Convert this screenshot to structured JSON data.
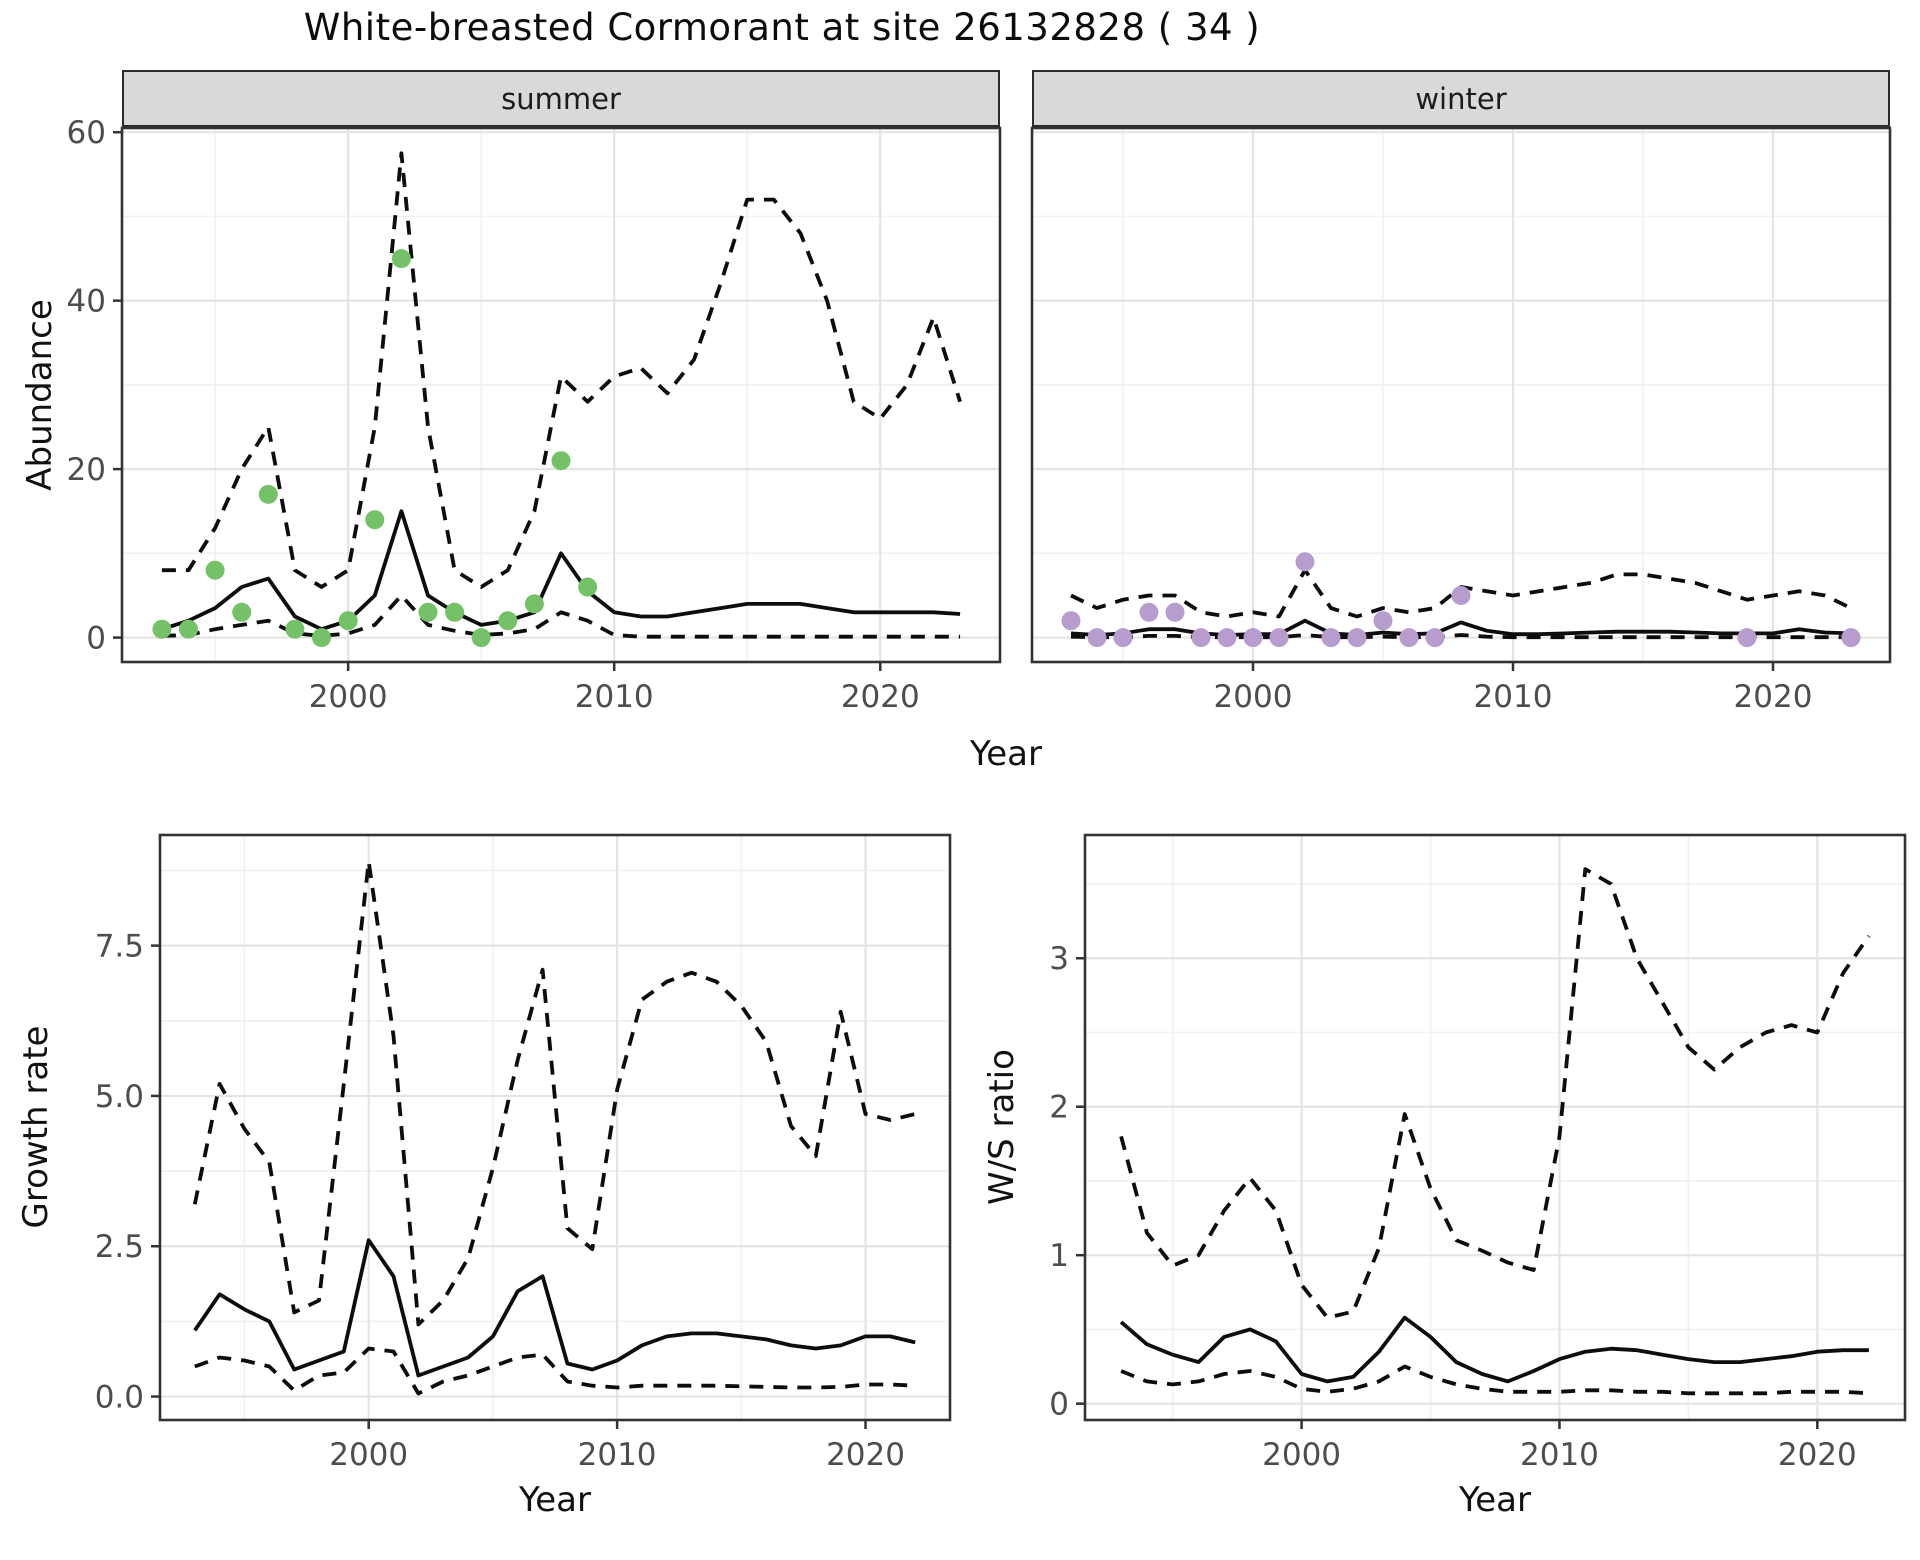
{
  "title": "White-breasted Cormorant at site 26132828 ( 34 )",
  "colors": {
    "summer_points": "#74c168",
    "winter_points": "#b79cce",
    "line": "#0d0d0d",
    "strip_bg": "#d9d9d9",
    "grid_major": "#e4e4e4",
    "grid_minor": "#f1f1f1",
    "tick_text": "#4d4d4d",
    "panel_border": "#333333"
  },
  "chart_data": [
    {
      "id": "abundance-summer",
      "type": "line",
      "facet_label": "summer",
      "ylabel": "Abundance",
      "xlabel": "Year",
      "xlim": [
        1991.5,
        2024.5
      ],
      "ylim": [
        -2.9,
        60.5
      ],
      "xticks": [
        2000,
        2010,
        2020
      ],
      "xtick_labels": [
        "2000",
        "2010",
        "2020"
      ],
      "xminor": [
        1995,
        2005,
        2015
      ],
      "yticks": [
        0,
        20,
        40,
        60
      ],
      "ytick_labels": [
        "0",
        "20",
        "40",
        "60"
      ],
      "yminor": [
        10,
        30,
        50
      ],
      "grid": true,
      "legend": "none",
      "x": [
        1993,
        1994,
        1995,
        1996,
        1997,
        1998,
        1999,
        2000,
        2001,
        2002,
        2003,
        2004,
        2005,
        2006,
        2007,
        2008,
        2009,
        2010,
        2011,
        2012,
        2013,
        2014,
        2015,
        2016,
        2017,
        2018,
        2019,
        2020,
        2021,
        2022,
        2023
      ],
      "series": [
        {
          "name": "fit",
          "style": "solid",
          "values": [
            1,
            2,
            3.5,
            6,
            7,
            2.5,
            1,
            2,
            5,
            15,
            5,
            3,
            1.5,
            2,
            3,
            10,
            5.5,
            3,
            2.5,
            2.5,
            3,
            3.5,
            4,
            4,
            4,
            3.5,
            3,
            3,
            3,
            3,
            2.8
          ]
        },
        {
          "name": "upper_ci",
          "style": "dashed",
          "values": [
            8,
            8,
            13,
            20,
            25,
            8,
            6,
            8,
            25,
            57.5,
            25,
            8,
            6,
            8,
            15,
            31,
            28,
            31,
            32,
            29,
            33,
            42,
            52,
            52,
            48,
            40,
            28,
            26,
            30,
            38,
            28
          ]
        },
        {
          "name": "lower_ci",
          "style": "dashed",
          "values": [
            0.2,
            0.3,
            1,
            1.5,
            2,
            0.5,
            0.2,
            0.5,
            1.5,
            5,
            1.5,
            0.8,
            0.3,
            0.5,
            1,
            3,
            2,
            0.3,
            0.1,
            0.1,
            0.1,
            0.1,
            0.1,
            0.1,
            0.1,
            0.1,
            0.1,
            0.1,
            0.1,
            0.1,
            0.1
          ]
        }
      ],
      "points": {
        "name": "observed_abundance_summer",
        "color": "#74c168",
        "data": [
          [
            1993,
            1
          ],
          [
            1994,
            1
          ],
          [
            1995,
            8
          ],
          [
            1996,
            3
          ],
          [
            1997,
            17
          ],
          [
            1998,
            1
          ],
          [
            1999,
            0
          ],
          [
            2000,
            2
          ],
          [
            2001,
            14
          ],
          [
            2002,
            45
          ],
          [
            2003,
            3
          ],
          [
            2004,
            3
          ],
          [
            2005,
            0
          ],
          [
            2006,
            2
          ],
          [
            2007,
            4
          ],
          [
            2008,
            21
          ],
          [
            2009,
            6
          ]
        ]
      }
    },
    {
      "id": "abundance-winter",
      "type": "line",
      "facet_label": "winter",
      "ylabel": "Abundance",
      "xlabel": "Year",
      "xlim": [
        1991.5,
        2024.5
      ],
      "ylim": [
        -2.9,
        60.5
      ],
      "xticks": [
        2000,
        2010,
        2020
      ],
      "xtick_labels": [
        "2000",
        "2010",
        "2020"
      ],
      "xminor": [
        1995,
        2005,
        2015
      ],
      "yticks": [
        0,
        20,
        40,
        60
      ],
      "ytick_labels": [
        "0",
        "20",
        "40",
        "60"
      ],
      "yminor": [
        10,
        30,
        50
      ],
      "grid": true,
      "legend": "none",
      "x": [
        1993,
        1994,
        1995,
        1996,
        1997,
        1998,
        1999,
        2000,
        2001,
        2002,
        2003,
        2004,
        2005,
        2006,
        2007,
        2008,
        2009,
        2010,
        2011,
        2012,
        2013,
        2014,
        2015,
        2016,
        2017,
        2018,
        2019,
        2020,
        2021,
        2022,
        2023
      ],
      "series": [
        {
          "name": "fit",
          "style": "solid",
          "values": [
            0.5,
            0.3,
            0.5,
            1,
            1,
            0.5,
            0.3,
            0.4,
            0.4,
            2,
            0.5,
            0.3,
            0.6,
            0.4,
            0.5,
            1.8,
            0.8,
            0.4,
            0.4,
            0.5,
            0.6,
            0.7,
            0.7,
            0.7,
            0.6,
            0.5,
            0.5,
            0.5,
            1,
            0.6,
            0.5
          ]
        },
        {
          "name": "upper_ci",
          "style": "dashed",
          "values": [
            5,
            3.5,
            4.5,
            5,
            5,
            3,
            2.5,
            3,
            2.5,
            8,
            3.5,
            2.5,
            3.5,
            3,
            3.5,
            6,
            5.5,
            5,
            5.5,
            6,
            6.5,
            7.5,
            7.5,
            7,
            6.5,
            5.5,
            4.5,
            5,
            5.5,
            5,
            3.5
          ]
        },
        {
          "name": "lower_ci",
          "style": "dashed",
          "values": [
            0.1,
            0.05,
            0.05,
            0.2,
            0.2,
            0.05,
            0.05,
            0.05,
            0.05,
            0.3,
            0.05,
            0.05,
            0.1,
            0.05,
            0.05,
            0.3,
            0.1,
            0.05,
            0.05,
            0.05,
            0.05,
            0.05,
            0.05,
            0.05,
            0.05,
            0.05,
            0.05,
            0.05,
            0.05,
            0.05,
            0.05
          ]
        }
      ],
      "points": {
        "name": "observed_abundance_winter",
        "color": "#b79cce",
        "data": [
          [
            1993,
            2
          ],
          [
            1994,
            0
          ],
          [
            1995,
            0
          ],
          [
            1996,
            3
          ],
          [
            1997,
            3
          ],
          [
            1998,
            0
          ],
          [
            1999,
            0
          ],
          [
            2000,
            0
          ],
          [
            2001,
            0
          ],
          [
            2002,
            9
          ],
          [
            2003,
            0
          ],
          [
            2004,
            0
          ],
          [
            2005,
            2
          ],
          [
            2006,
            0
          ],
          [
            2007,
            0
          ],
          [
            2008,
            5
          ],
          [
            2019,
            0
          ],
          [
            2023,
            0
          ]
        ]
      }
    },
    {
      "id": "growth-rate",
      "type": "line",
      "facet_label": "",
      "ylabel": "Growth rate",
      "xlabel": "Year",
      "xlim": [
        1991.6,
        2023.4
      ],
      "ylim": [
        -0.39,
        9.34
      ],
      "xticks": [
        2000,
        2010,
        2020
      ],
      "xtick_labels": [
        "2000",
        "2010",
        "2020"
      ],
      "xminor": [
        1995,
        2005,
        2015
      ],
      "yticks": [
        0,
        2.5,
        5,
        7.5
      ],
      "ytick_labels": [
        "0.0",
        "2.5",
        "5.0",
        "7.5"
      ],
      "yminor": [
        1.25,
        3.75,
        6.25,
        8.75
      ],
      "grid": true,
      "legend": "none",
      "x": [
        1993,
        1994,
        1995,
        1996,
        1997,
        1998,
        1999,
        2000,
        2001,
        2002,
        2003,
        2004,
        2005,
        2006,
        2007,
        2008,
        2009,
        2010,
        2011,
        2012,
        2013,
        2014,
        2015,
        2016,
        2017,
        2018,
        2019,
        2020,
        2021,
        2022
      ],
      "series": [
        {
          "name": "fit",
          "style": "solid",
          "values": [
            1.1,
            1.7,
            1.45,
            1.25,
            0.45,
            0.6,
            0.75,
            2.6,
            2.0,
            0.35,
            0.5,
            0.65,
            1.0,
            1.75,
            2.0,
            0.55,
            0.45,
            0.6,
            0.85,
            1.0,
            1.05,
            1.05,
            1.0,
            0.95,
            0.85,
            0.8,
            0.85,
            1.0,
            1.0,
            0.9
          ]
        },
        {
          "name": "upper_ci",
          "style": "dashed",
          "values": [
            3.2,
            5.2,
            4.45,
            3.9,
            1.4,
            1.6,
            5.2,
            8.9,
            6.0,
            1.2,
            1.6,
            2.3,
            3.8,
            5.6,
            7.1,
            2.8,
            2.45,
            5.1,
            6.6,
            6.9,
            7.05,
            6.9,
            6.5,
            5.9,
            4.5,
            4.0,
            6.4,
            4.7,
            4.6,
            4.7
          ]
        },
        {
          "name": "lower_ci",
          "style": "dashed",
          "values": [
            0.5,
            0.65,
            0.6,
            0.5,
            0.1,
            0.35,
            0.4,
            0.8,
            0.75,
            0.05,
            0.25,
            0.35,
            0.5,
            0.65,
            0.7,
            0.25,
            0.18,
            0.15,
            0.18,
            0.18,
            0.18,
            0.18,
            0.17,
            0.16,
            0.15,
            0.15,
            0.16,
            0.2,
            0.2,
            0.18
          ]
        }
      ],
      "points": null
    },
    {
      "id": "ws-ratio",
      "type": "line",
      "facet_label": "",
      "ylabel": "W/S ratio",
      "xlabel": "Year",
      "xlim": [
        1991.6,
        2023.4
      ],
      "ylim": [
        -0.11,
        3.83
      ],
      "xticks": [
        2000,
        2010,
        2020
      ],
      "xtick_labels": [
        "2000",
        "2010",
        "2020"
      ],
      "xminor": [
        1995,
        2005,
        2015
      ],
      "yticks": [
        0,
        1,
        2,
        3
      ],
      "ytick_labels": [
        "0",
        "1",
        "2",
        "3"
      ],
      "yminor": [
        0.5,
        1.5,
        2.5,
        3.5
      ],
      "grid": true,
      "legend": "none",
      "x": [
        1993,
        1994,
        1995,
        1996,
        1997,
        1998,
        1999,
        2000,
        2001,
        2002,
        2003,
        2004,
        2005,
        2006,
        2007,
        2008,
        2009,
        2010,
        2011,
        2012,
        2013,
        2014,
        2015,
        2016,
        2017,
        2018,
        2019,
        2020,
        2021,
        2022
      ],
      "series": [
        {
          "name": "fit",
          "style": "solid",
          "values": [
            0.55,
            0.4,
            0.33,
            0.28,
            0.45,
            0.5,
            0.42,
            0.2,
            0.15,
            0.18,
            0.35,
            0.58,
            0.45,
            0.28,
            0.2,
            0.15,
            0.22,
            0.3,
            0.35,
            0.37,
            0.36,
            0.33,
            0.3,
            0.28,
            0.28,
            0.3,
            0.32,
            0.35,
            0.36,
            0.36
          ]
        },
        {
          "name": "upper_ci",
          "style": "dashed",
          "values": [
            1.8,
            1.15,
            0.93,
            1.0,
            1.3,
            1.52,
            1.3,
            0.8,
            0.58,
            0.62,
            1.05,
            1.95,
            1.45,
            1.1,
            1.03,
            0.95,
            0.9,
            1.8,
            3.6,
            3.5,
            3.0,
            2.7,
            2.4,
            2.25,
            2.4,
            2.5,
            2.55,
            2.5,
            2.9,
            3.15
          ]
        },
        {
          "name": "lower_ci",
          "style": "dashed",
          "values": [
            0.22,
            0.15,
            0.13,
            0.15,
            0.2,
            0.22,
            0.18,
            0.1,
            0.08,
            0.1,
            0.15,
            0.25,
            0.18,
            0.13,
            0.1,
            0.08,
            0.08,
            0.08,
            0.09,
            0.09,
            0.08,
            0.08,
            0.07,
            0.07,
            0.07,
            0.07,
            0.08,
            0.08,
            0.08,
            0.07
          ]
        }
      ],
      "points": null
    }
  ]
}
